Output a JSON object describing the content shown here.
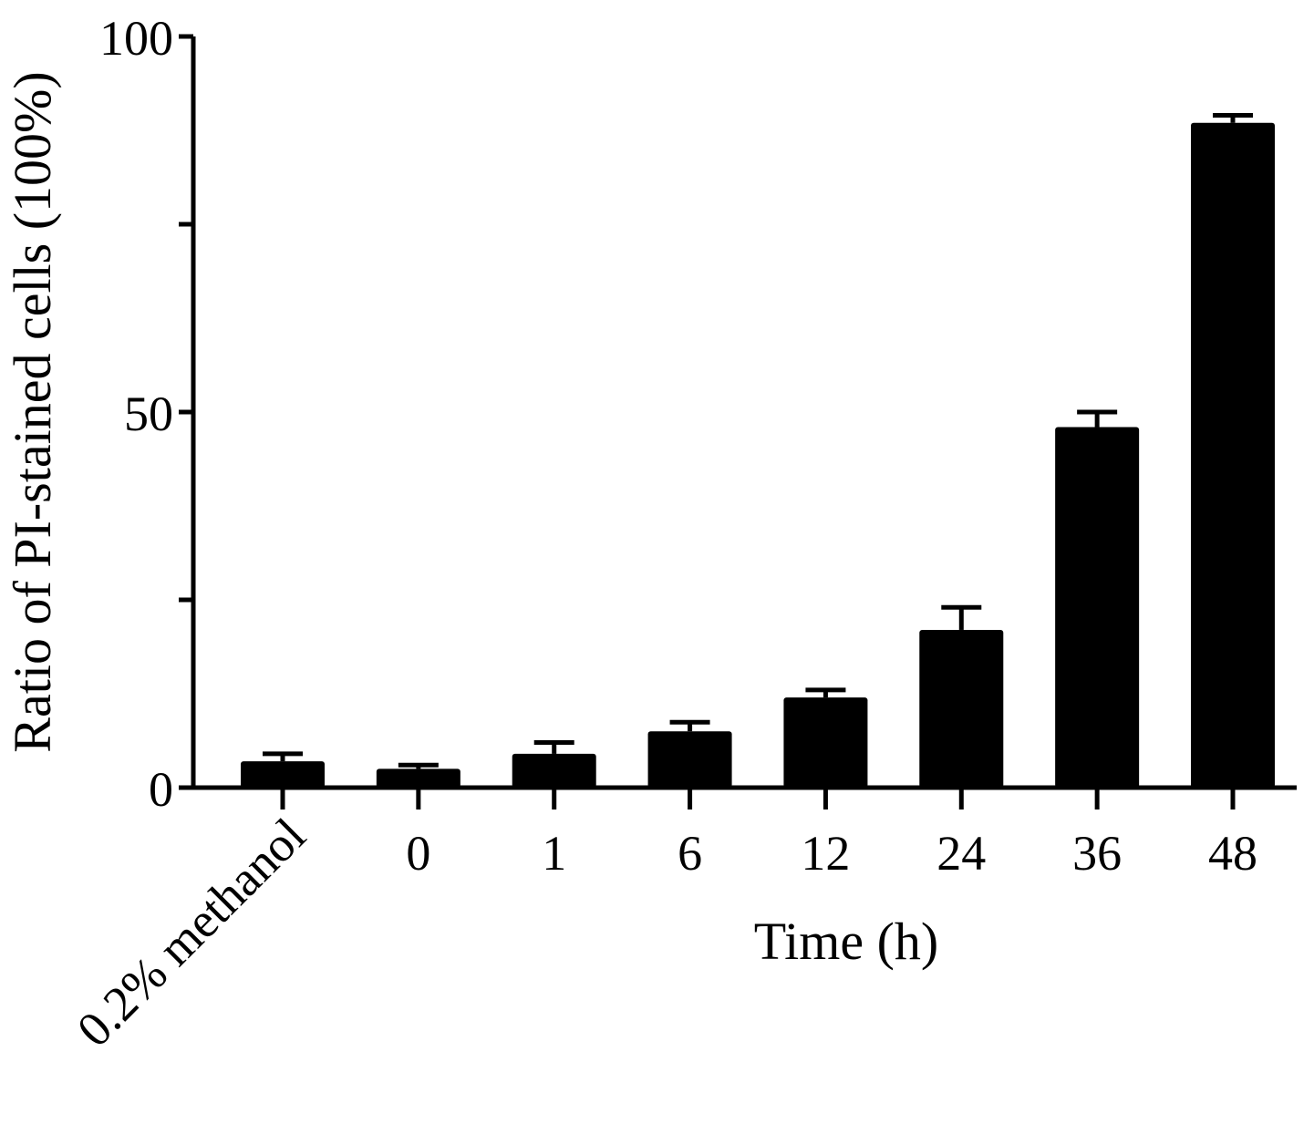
{
  "chart_data": {
    "type": "bar",
    "categories": [
      "0.2% methanol",
      "0",
      "1",
      "6",
      "12",
      "24",
      "36",
      "48"
    ],
    "values": [
      3.5,
      2.5,
      4.5,
      7.5,
      12,
      21,
      48,
      88.5
    ],
    "errors": [
      1.0,
      0.5,
      1.5,
      1.2,
      1.0,
      3.0,
      2.0,
      1.0
    ],
    "xlabel": "Time (h)",
    "ylabel": "Ratio of PI-stained cells (100%)",
    "ylim": [
      0,
      100
    ],
    "yticks": [
      0,
      25,
      50,
      75,
      100
    ],
    "ytick_labels": [
      "0",
      "",
      "50",
      "",
      "100"
    ],
    "bar_color": "#000000",
    "grid": false,
    "legend": "none"
  }
}
